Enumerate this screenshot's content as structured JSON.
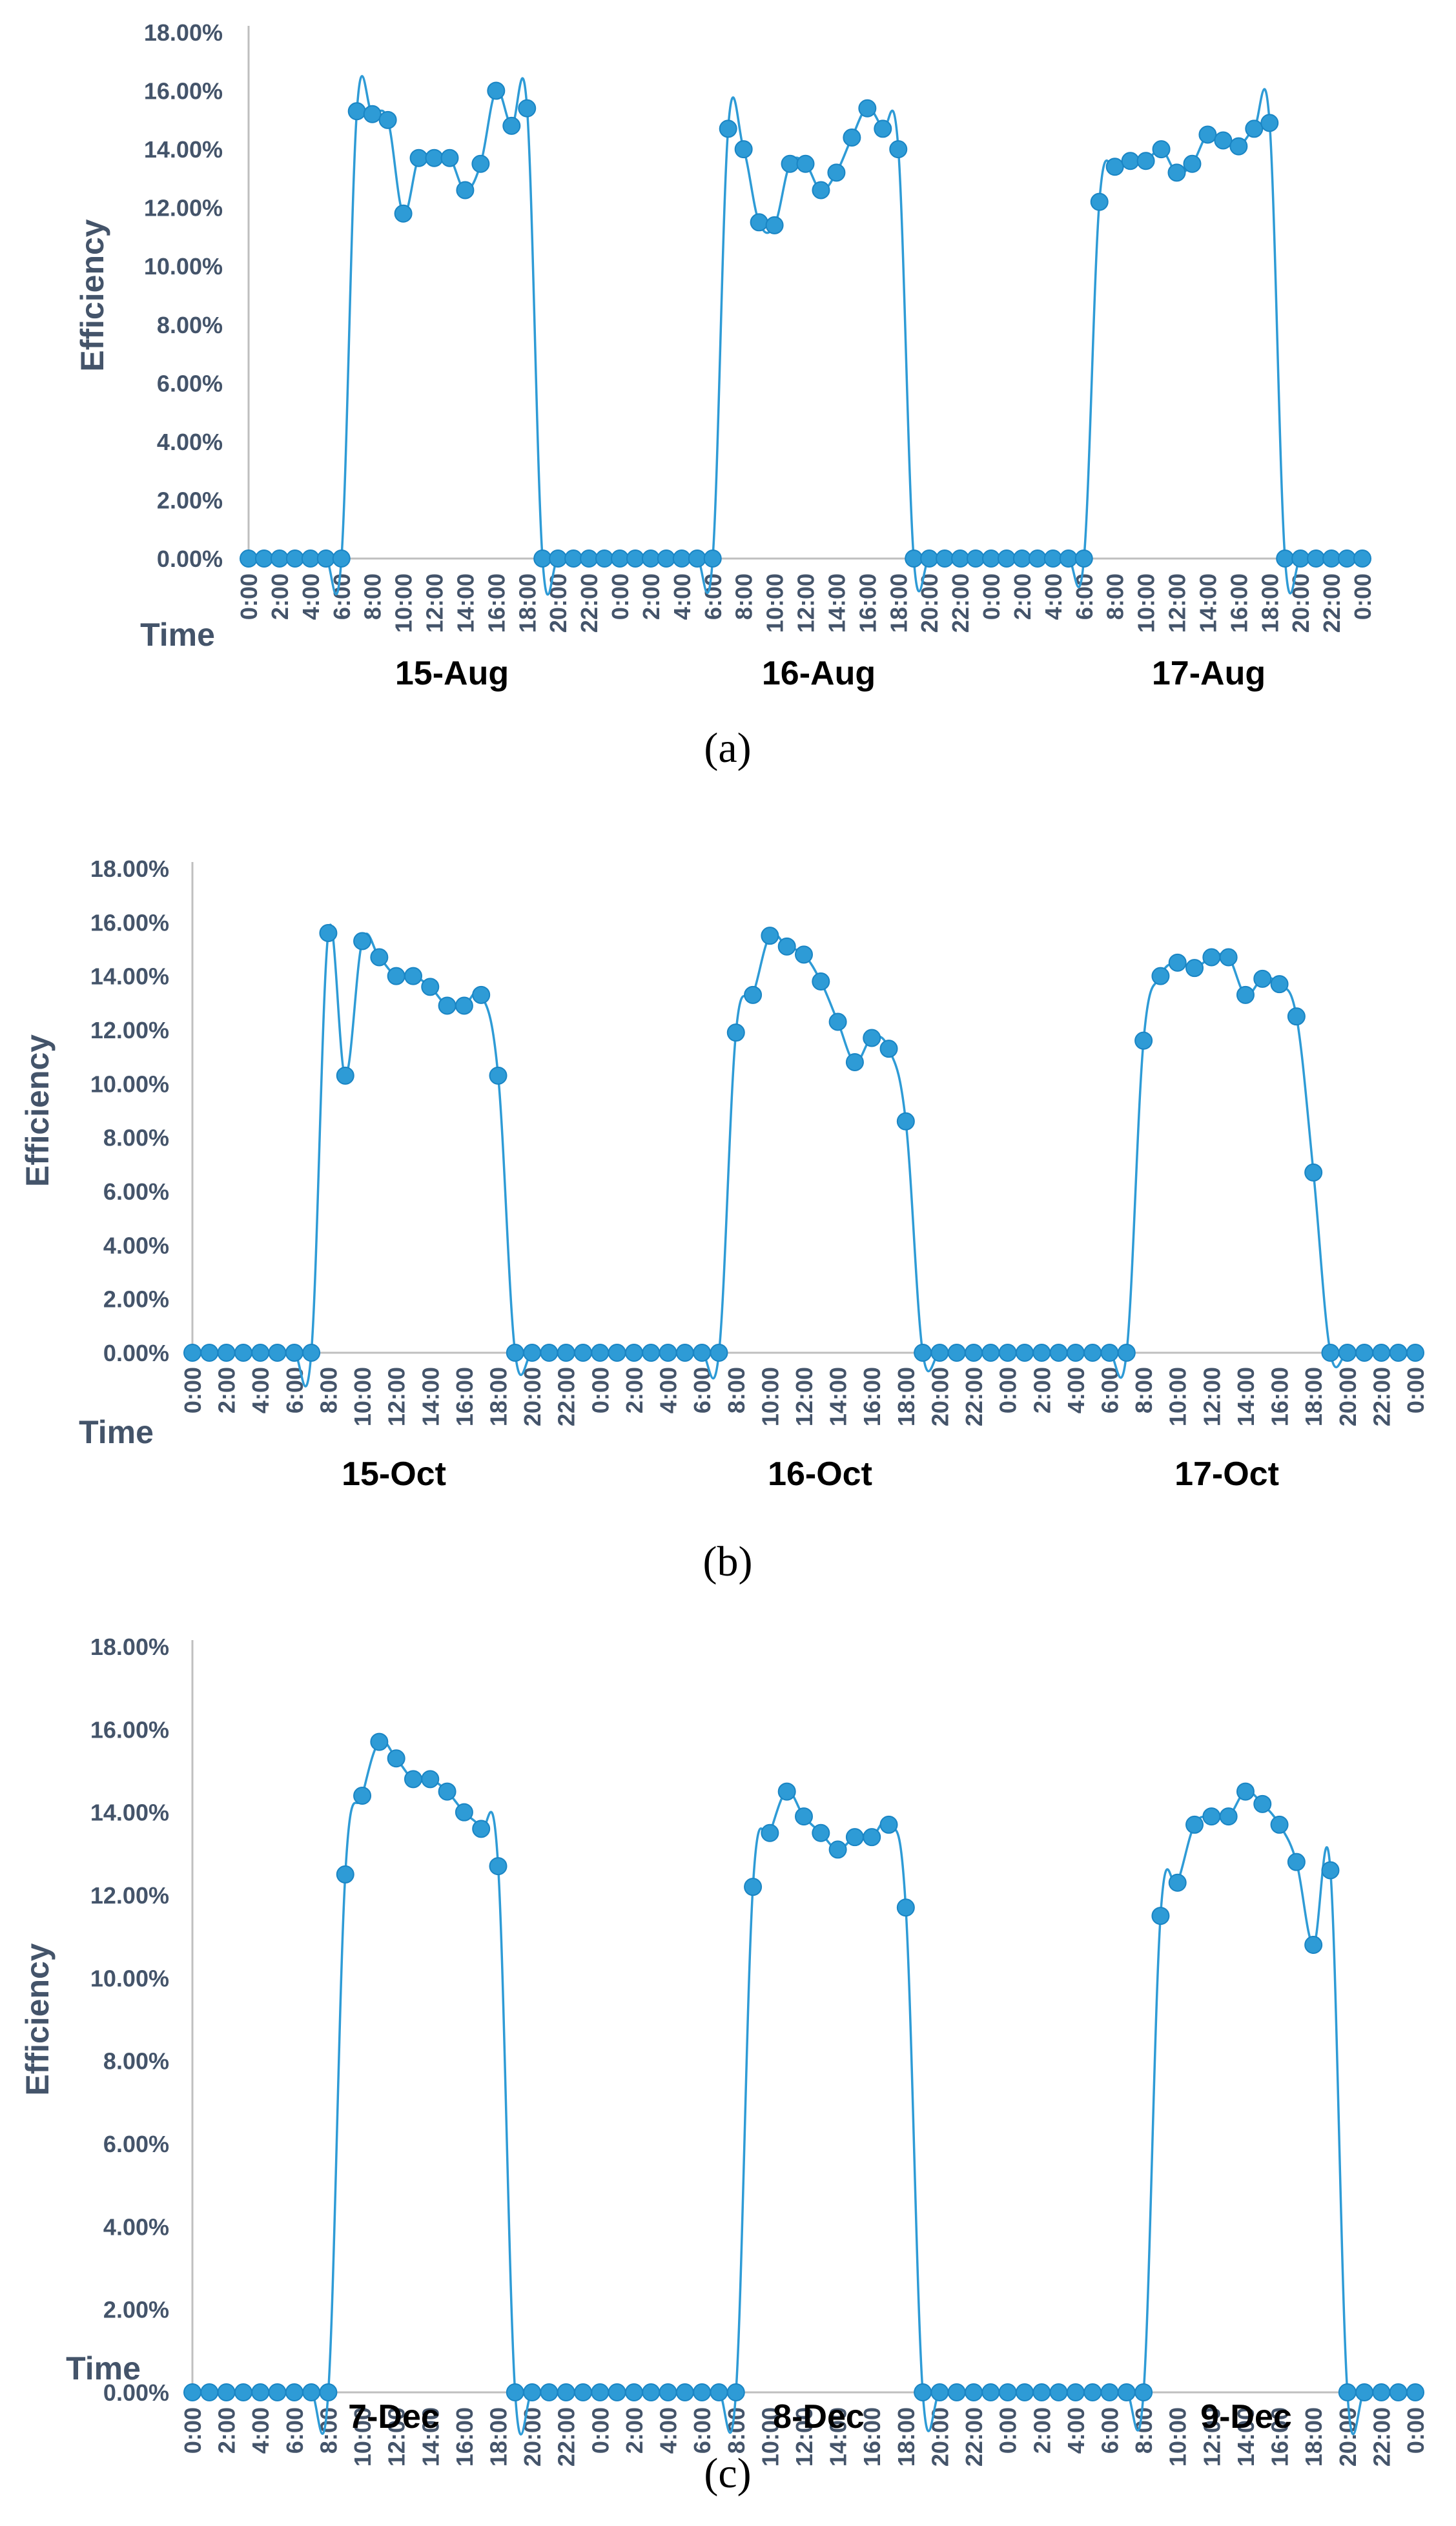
{
  "chart_data": [
    {
      "type": "line",
      "panel_tag": "(a)",
      "ylabel": "Efficiency",
      "xlabel": "Time",
      "ylim": [
        0,
        18
      ],
      "yticks": [
        "0.00%",
        "2.00%",
        "4.00%",
        "6.00%",
        "8.00%",
        "10.00%",
        "12.00%",
        "14.00%",
        "16.00%",
        "18.00%"
      ],
      "xticks": [
        "0:00",
        "2:00",
        "4:00",
        "6:00",
        "8:00",
        "10:00",
        "12:00",
        "14:00",
        "16:00",
        "18:00",
        "20:00",
        "22:00",
        "0:00",
        "2:00",
        "4:00",
        "6:00",
        "8:00",
        "10:00",
        "12:00",
        "14:00",
        "16:00",
        "18:00",
        "20:00",
        "22:00",
        "0:00",
        "2:00",
        "4:00",
        "6:00",
        "8:00",
        "10:00",
        "12:00",
        "14:00",
        "16:00",
        "18:00",
        "20:00",
        "22:00",
        "0:00"
      ],
      "days": [
        {
          "label": "15-Aug",
          "hours": [
            0,
            1,
            2,
            3,
            4,
            5,
            6,
            7,
            8,
            9,
            10,
            11,
            12,
            13,
            14,
            15,
            16,
            17,
            18,
            19
          ],
          "values": [
            0,
            0,
            0,
            0,
            0,
            0,
            0,
            15.3,
            15.2,
            15.0,
            11.8,
            13.7,
            13.7,
            13.7,
            12.6,
            13.5,
            16.0,
            14.8,
            15.4,
            0
          ]
        },
        {
          "label": "16-Aug",
          "hours": [
            20,
            21,
            22,
            23,
            24,
            25,
            26,
            27,
            28,
            29,
            30,
            31,
            32,
            33,
            34,
            35,
            36,
            37,
            38,
            39,
            40,
            41,
            42,
            43
          ],
          "values": [
            0,
            0,
            0,
            0,
            0,
            0,
            0,
            0,
            0,
            0,
            0,
            14.7,
            14.0,
            11.5,
            11.4,
            13.5,
            13.5,
            12.6,
            13.2,
            14.4,
            15.4,
            14.7,
            14.0,
            0
          ]
        },
        {
          "label": "17-Aug",
          "hours": [
            44,
            45,
            46,
            47,
            48,
            49,
            50,
            51,
            52,
            53,
            54,
            55,
            56,
            57,
            58,
            59,
            60,
            61,
            62,
            63,
            64,
            65,
            66,
            67,
            68,
            69,
            70,
            71,
            72
          ],
          "values": [
            0,
            0,
            0,
            0,
            0,
            0,
            0,
            0,
            0,
            0,
            0,
            12.2,
            13.4,
            13.6,
            13.6,
            14.0,
            13.2,
            13.5,
            14.5,
            14.3,
            14.1,
            14.7,
            14.9,
            0,
            0,
            0,
            0,
            0,
            0
          ]
        }
      ]
    },
    {
      "type": "line",
      "panel_tag": "(b)",
      "ylabel": "Efficiency",
      "xlabel": "Time",
      "ylim": [
        0,
        18
      ],
      "yticks": [
        "0.00%",
        "2.00%",
        "4.00%",
        "6.00%",
        "8.00%",
        "10.00%",
        "12.00%",
        "14.00%",
        "16.00%",
        "18.00%"
      ],
      "xticks": [
        "0:00",
        "2:00",
        "4:00",
        "6:00",
        "8:00",
        "10:00",
        "12:00",
        "14:00",
        "16:00",
        "18:00",
        "20:00",
        "22:00",
        "0:00",
        "2:00",
        "4:00",
        "6:00",
        "8:00",
        "10:00",
        "12:00",
        "14:00",
        "16:00",
        "18:00",
        "20:00",
        "22:00",
        "0:00",
        "2:00",
        "4:00",
        "6:00",
        "8:00",
        "10:00",
        "12:00",
        "14:00",
        "16:00",
        "18:00",
        "20:00",
        "22:00",
        "0:00"
      ],
      "days": [
        {
          "label": "15-Oct",
          "hours": [
            0,
            1,
            2,
            3,
            4,
            5,
            6,
            7,
            8,
            9,
            10,
            11,
            12,
            13,
            14,
            15,
            16,
            17,
            18,
            19
          ],
          "values": [
            0,
            0,
            0,
            0,
            0,
            0,
            0,
            0,
            15.6,
            10.3,
            15.3,
            14.7,
            14.0,
            14.0,
            13.6,
            12.9,
            12.9,
            13.3,
            10.3,
            0
          ]
        },
        {
          "label": "16-Oct",
          "hours": [
            20,
            21,
            22,
            23,
            24,
            25,
            26,
            27,
            28,
            29,
            30,
            31,
            32,
            33,
            34,
            35,
            36,
            37,
            38,
            39,
            40,
            41,
            42,
            43
          ],
          "values": [
            0,
            0,
            0,
            0,
            0,
            0,
            0,
            0,
            0,
            0,
            0,
            0,
            11.9,
            13.3,
            15.5,
            15.1,
            14.8,
            13.8,
            12.3,
            10.8,
            11.7,
            11.3,
            8.6,
            0
          ]
        },
        {
          "label": "17-Oct",
          "hours": [
            44,
            45,
            46,
            47,
            48,
            49,
            50,
            51,
            52,
            53,
            54,
            55,
            56,
            57,
            58,
            59,
            60,
            61,
            62,
            63,
            64,
            65,
            66,
            67,
            68,
            69,
            70,
            71,
            72
          ],
          "values": [
            0,
            0,
            0,
            0,
            0,
            0,
            0,
            0,
            0,
            0,
            0,
            0,
            11.6,
            14.0,
            14.5,
            14.3,
            14.7,
            14.7,
            13.3,
            13.9,
            13.7,
            12.5,
            6.7,
            0,
            0,
            0,
            0,
            0,
            0
          ]
        }
      ]
    },
    {
      "type": "line",
      "panel_tag": "(c)",
      "ylabel": "Efficiency",
      "xlabel": "Time",
      "ylim": [
        0,
        18
      ],
      "yticks": [
        "0.00%",
        "2.00%",
        "4.00%",
        "6.00%",
        "8.00%",
        "10.00%",
        "12.00%",
        "14.00%",
        "16.00%",
        "18.00%"
      ],
      "xticks": [
        "0:00",
        "2:00",
        "4:00",
        "6:00",
        "8:00",
        "10:00",
        "12:00",
        "14:00",
        "16:00",
        "18:00",
        "20:00",
        "22:00",
        "0:00",
        "2:00",
        "4:00",
        "6:00",
        "8:00",
        "10:00",
        "12:00",
        "14:00",
        "16:00",
        "18:00",
        "20:00",
        "22:00",
        "0:00",
        "2:00",
        "4:00",
        "6:00",
        "8:00",
        "10:00",
        "12:00",
        "14:00",
        "16:00",
        "18:00",
        "20:00",
        "22:00",
        "0:00"
      ],
      "days": [
        {
          "label": "7-Dec",
          "hours": [
            0,
            1,
            2,
            3,
            4,
            5,
            6,
            7,
            8,
            9,
            10,
            11,
            12,
            13,
            14,
            15,
            16,
            17,
            18,
            19
          ],
          "values": [
            0,
            0,
            0,
            0,
            0,
            0,
            0,
            0,
            0,
            12.5,
            14.4,
            15.7,
            15.3,
            14.8,
            14.8,
            14.5,
            14.0,
            13.6,
            12.7,
            0
          ]
        },
        {
          "label": "8-Dec",
          "hours": [
            20,
            21,
            22,
            23,
            24,
            25,
            26,
            27,
            28,
            29,
            30,
            31,
            32,
            33,
            34,
            35,
            36,
            37,
            38,
            39,
            40,
            41,
            42,
            43
          ],
          "values": [
            0,
            0,
            0,
            0,
            0,
            0,
            0,
            0,
            0,
            0,
            0,
            0,
            0,
            12.2,
            13.5,
            14.5,
            13.9,
            13.5,
            13.1,
            13.4,
            13.4,
            13.7,
            11.7,
            0
          ]
        },
        {
          "label": "9-Dec",
          "hours": [
            44,
            45,
            46,
            47,
            48,
            49,
            50,
            51,
            52,
            53,
            54,
            55,
            56,
            57,
            58,
            59,
            60,
            61,
            62,
            63,
            64,
            65,
            66,
            67,
            68,
            69,
            70,
            71,
            72
          ],
          "values": [
            0,
            0,
            0,
            0,
            0,
            0,
            0,
            0,
            0,
            0,
            0,
            0,
            0,
            11.5,
            12.3,
            13.7,
            13.9,
            13.9,
            14.5,
            14.2,
            13.7,
            12.8,
            10.8,
            12.6,
            0,
            0,
            0,
            0,
            0
          ]
        }
      ]
    }
  ]
}
